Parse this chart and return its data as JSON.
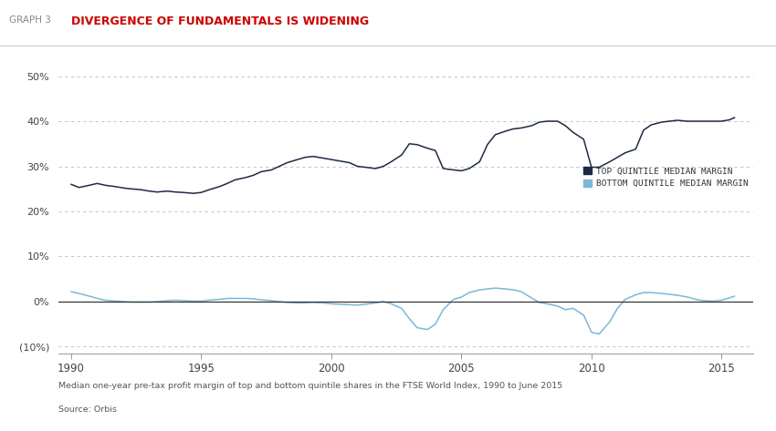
{
  "title_graph": "GRAPH 3",
  "title_main": "DIVERGENCE OF FUNDAMENTALS IS WIDENING",
  "subtitle": "Median one-year pre-tax profit margin of top and bottom quintile shares in the FTSE World Index, 1990 to June 2015",
  "source": "Source: Orbis",
  "top_color": "#1c2b45",
  "bottom_color": "#7ab8d8",
  "legend_top": "TOP QUINTILE MEDIAN MARGIN",
  "legend_bottom": "BOTTOM QUINTILE MEDIAN MARGIN",
  "ylim": [
    -0.115,
    0.535
  ],
  "yticks": [
    -0.1,
    0.0,
    0.1,
    0.2,
    0.3,
    0.4,
    0.5
  ],
  "ytick_labels": [
    "(10%)",
    "0%",
    "10%",
    "20%",
    "30%",
    "40%",
    "50%"
  ],
  "xlim": [
    1989.5,
    2016.2
  ],
  "xticks": [
    1990,
    1995,
    2000,
    2005,
    2010,
    2015
  ],
  "top_x": [
    1990.0,
    1990.3,
    1990.7,
    1991.0,
    1991.3,
    1991.7,
    1992.0,
    1992.3,
    1992.7,
    1993.0,
    1993.3,
    1993.7,
    1994.0,
    1994.3,
    1994.7,
    1995.0,
    1995.3,
    1995.7,
    1996.0,
    1996.3,
    1996.7,
    1997.0,
    1997.3,
    1997.7,
    1998.0,
    1998.3,
    1998.7,
    1999.0,
    1999.3,
    1999.7,
    2000.0,
    2000.3,
    2000.7,
    2001.0,
    2001.3,
    2001.7,
    2002.0,
    2002.3,
    2002.7,
    2003.0,
    2003.3,
    2003.7,
    2004.0,
    2004.3,
    2004.7,
    2005.0,
    2005.3,
    2005.7,
    2006.0,
    2006.3,
    2006.7,
    2007.0,
    2007.3,
    2007.7,
    2008.0,
    2008.3,
    2008.7,
    2009.0,
    2009.3,
    2009.7,
    2010.0,
    2010.3,
    2010.7,
    2011.0,
    2011.3,
    2011.7,
    2012.0,
    2012.3,
    2012.7,
    2013.0,
    2013.3,
    2013.7,
    2014.0,
    2014.3,
    2014.7,
    2015.0,
    2015.3,
    2015.5
  ],
  "top_y": [
    0.26,
    0.253,
    0.258,
    0.262,
    0.258,
    0.255,
    0.252,
    0.25,
    0.248,
    0.245,
    0.243,
    0.245,
    0.243,
    0.242,
    0.24,
    0.242,
    0.248,
    0.255,
    0.262,
    0.27,
    0.275,
    0.28,
    0.288,
    0.292,
    0.3,
    0.308,
    0.315,
    0.32,
    0.322,
    0.318,
    0.315,
    0.312,
    0.308,
    0.3,
    0.298,
    0.295,
    0.3,
    0.31,
    0.325,
    0.35,
    0.348,
    0.34,
    0.335,
    0.295,
    0.292,
    0.29,
    0.295,
    0.31,
    0.348,
    0.37,
    0.378,
    0.383,
    0.385,
    0.39,
    0.398,
    0.4,
    0.4,
    0.39,
    0.375,
    0.36,
    0.298,
    0.298,
    0.31,
    0.32,
    0.33,
    0.338,
    0.38,
    0.392,
    0.398,
    0.4,
    0.402,
    0.4,
    0.4,
    0.4,
    0.4,
    0.4,
    0.403,
    0.408
  ],
  "bottom_x": [
    1990.0,
    1990.3,
    1990.7,
    1991.0,
    1991.3,
    1991.7,
    1992.0,
    1992.3,
    1992.7,
    1993.0,
    1993.3,
    1993.7,
    1994.0,
    1994.3,
    1994.7,
    1995.0,
    1995.3,
    1995.7,
    1996.0,
    1996.3,
    1996.7,
    1997.0,
    1997.3,
    1997.7,
    1998.0,
    1998.3,
    1998.7,
    1999.0,
    1999.3,
    1999.7,
    2000.0,
    2000.3,
    2000.7,
    2001.0,
    2001.3,
    2001.7,
    2002.0,
    2002.3,
    2002.7,
    2003.0,
    2003.3,
    2003.7,
    2004.0,
    2004.3,
    2004.7,
    2005.0,
    2005.3,
    2005.7,
    2006.0,
    2006.3,
    2006.7,
    2007.0,
    2007.3,
    2007.7,
    2008.0,
    2008.3,
    2008.7,
    2009.0,
    2009.3,
    2009.7,
    2010.0,
    2010.3,
    2010.7,
    2011.0,
    2011.3,
    2011.7,
    2012.0,
    2012.3,
    2012.7,
    2013.0,
    2013.3,
    2013.7,
    2014.0,
    2014.3,
    2014.7,
    2015.0,
    2015.3,
    2015.5
  ],
  "bottom_y": [
    0.022,
    0.018,
    0.012,
    0.007,
    0.003,
    0.001,
    0.0,
    -0.001,
    -0.001,
    -0.001,
    0.0,
    0.002,
    0.003,
    0.002,
    0.001,
    0.001,
    0.003,
    0.005,
    0.007,
    0.007,
    0.007,
    0.006,
    0.004,
    0.002,
    0.0,
    -0.002,
    -0.003,
    -0.003,
    -0.002,
    -0.003,
    -0.005,
    -0.006,
    -0.007,
    -0.008,
    -0.006,
    -0.003,
    0.0,
    -0.005,
    -0.015,
    -0.038,
    -0.058,
    -0.062,
    -0.05,
    -0.018,
    0.005,
    0.01,
    0.02,
    0.026,
    0.028,
    0.03,
    0.028,
    0.026,
    0.022,
    0.008,
    -0.002,
    -0.005,
    -0.01,
    -0.018,
    -0.015,
    -0.03,
    -0.068,
    -0.072,
    -0.045,
    -0.015,
    0.005,
    0.015,
    0.02,
    0.02,
    0.018,
    0.016,
    0.014,
    0.01,
    0.005,
    0.002,
    0.001,
    0.003,
    0.008,
    0.012
  ]
}
